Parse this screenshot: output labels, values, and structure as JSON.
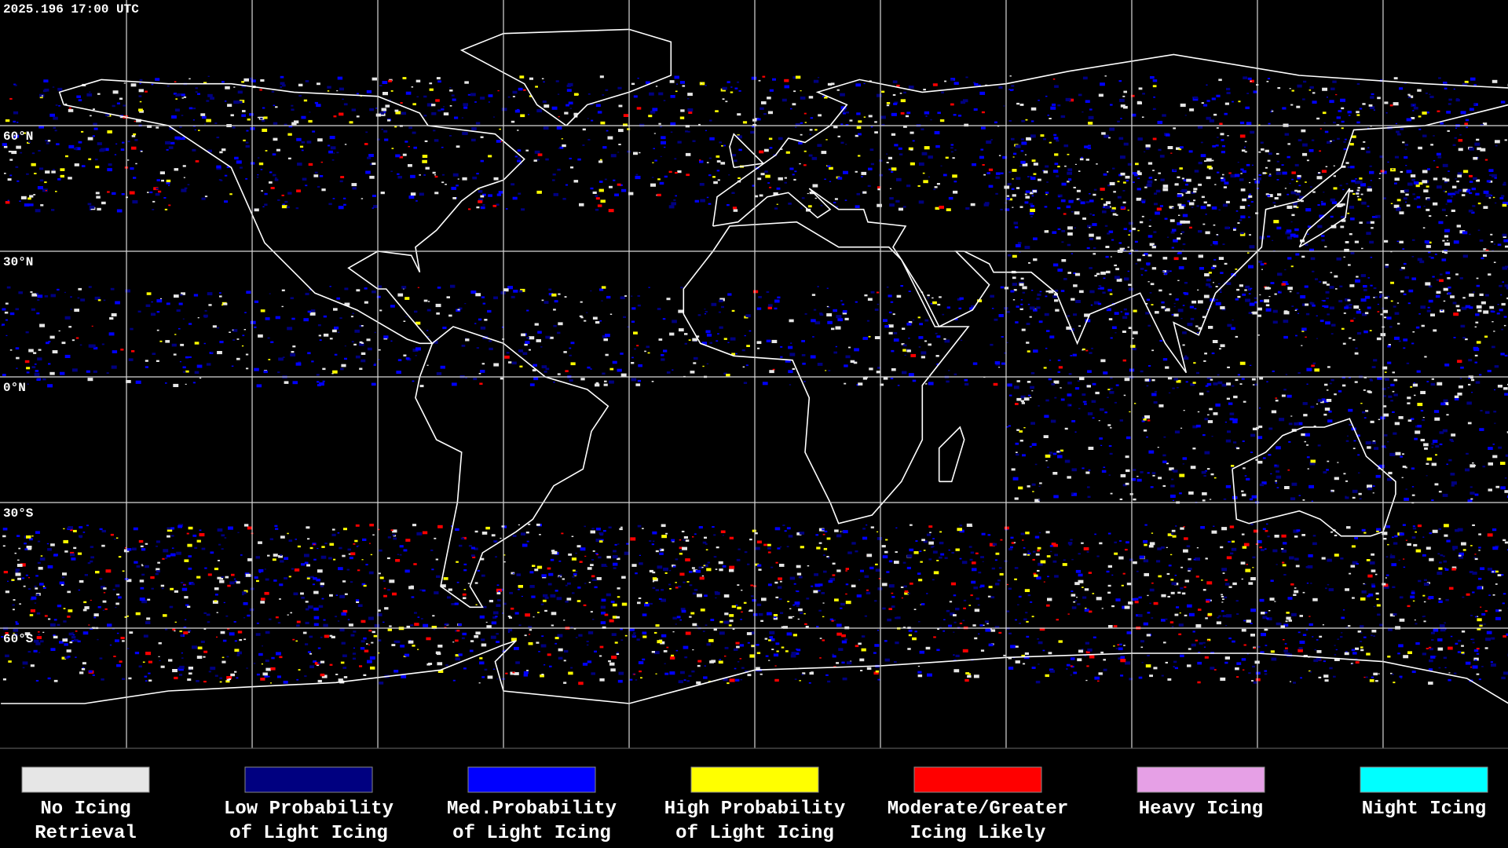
{
  "timestamp": "2025.196 17:00 UTC",
  "latitude_labels": [
    "60°N",
    "30°N",
    "0°N",
    "30°S",
    "60°S"
  ],
  "legend": [
    {
      "lines": [
        "No Icing",
        "Retrieval"
      ],
      "color": "#e6e6e6"
    },
    {
      "lines": [
        "Low Probability",
        "of Light Icing"
      ],
      "color": "#000080"
    },
    {
      "lines": [
        "Med.Probability",
        "of Light Icing"
      ],
      "color": "#0000ff"
    },
    {
      "lines": [
        "High Probability",
        "of Light Icing"
      ],
      "color": "#ffff00"
    },
    {
      "lines": [
        "Moderate/Greater",
        "Icing Likely"
      ],
      "color": "#ff0000"
    },
    {
      "lines": [
        "Heavy Icing"
      ],
      "color": "#e6a0e6"
    },
    {
      "lines": [
        "Night Icing"
      ],
      "color": "#00ffff"
    }
  ]
}
